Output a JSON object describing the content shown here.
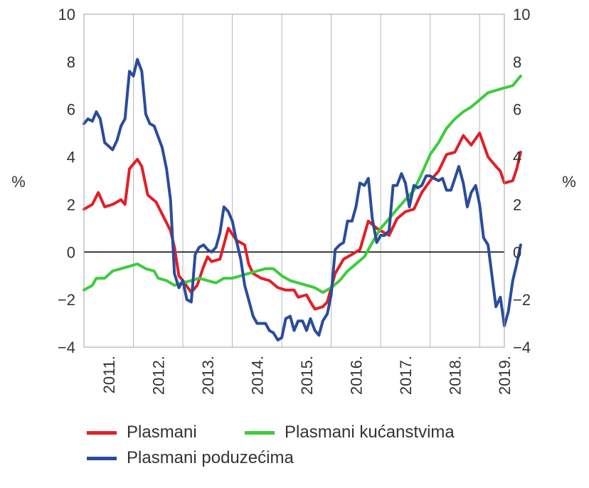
{
  "chart_data": {
    "type": "line",
    "title": "",
    "xlabel": "",
    "ylabel": "%",
    "ylabel_right": "%",
    "ylim": [
      -4,
      10
    ],
    "yticks": [
      "10",
      "8",
      "6",
      "4",
      "2",
      "0",
      "−2",
      "−4"
    ],
    "x_start": 2011.0,
    "x_end": 2019.5,
    "year_labels": [
      "2011.",
      "2012.",
      "2013.",
      "2014.",
      "2015.",
      "2016.",
      "2017.",
      "2018.",
      "2019."
    ],
    "grid": true,
    "zero_line": true,
    "legend_position": "bottom",
    "series": [
      {
        "name": "Plasmani",
        "color": "#e31e26",
        "points": [
          [
            2011.0,
            1.8
          ],
          [
            2011.17,
            2.0
          ],
          [
            2011.29,
            2.5
          ],
          [
            2011.42,
            1.9
          ],
          [
            2011.58,
            2.0
          ],
          [
            2011.75,
            2.2
          ],
          [
            2011.83,
            2.0
          ],
          [
            2011.92,
            3.5
          ],
          [
            2012.08,
            3.9
          ],
          [
            2012.17,
            3.6
          ],
          [
            2012.29,
            2.4
          ],
          [
            2012.46,
            2.1
          ],
          [
            2012.58,
            1.6
          ],
          [
            2012.75,
            0.9
          ],
          [
            2012.83,
            0.2
          ],
          [
            2012.92,
            -1.0
          ],
          [
            2013.0,
            -1.2
          ],
          [
            2013.17,
            -1.7
          ],
          [
            2013.29,
            -1.4
          ],
          [
            2013.42,
            -0.6
          ],
          [
            2013.5,
            -0.2
          ],
          [
            2013.58,
            -0.4
          ],
          [
            2013.75,
            -0.3
          ],
          [
            2013.92,
            1.0
          ],
          [
            2014.08,
            0.5
          ],
          [
            2014.25,
            0.3
          ],
          [
            2014.33,
            -0.5
          ],
          [
            2014.42,
            -0.9
          ],
          [
            2014.58,
            -1.1
          ],
          [
            2014.75,
            -1.2
          ],
          [
            2014.92,
            -1.5
          ],
          [
            2015.08,
            -1.6
          ],
          [
            2015.25,
            -1.6
          ],
          [
            2015.33,
            -1.9
          ],
          [
            2015.5,
            -1.8
          ],
          [
            2015.58,
            -2.1
          ],
          [
            2015.67,
            -2.4
          ],
          [
            2015.83,
            -2.3
          ],
          [
            2015.92,
            -2.1
          ],
          [
            2016.08,
            -0.9
          ],
          [
            2016.25,
            -0.3
          ],
          [
            2016.42,
            -0.1
          ],
          [
            2016.58,
            0.1
          ],
          [
            2016.75,
            1.3
          ],
          [
            2016.92,
            1.0
          ],
          [
            2017.0,
            0.9
          ],
          [
            2017.17,
            0.7
          ],
          [
            2017.33,
            1.4
          ],
          [
            2017.5,
            1.7
          ],
          [
            2017.67,
            1.8
          ],
          [
            2017.83,
            2.5
          ],
          [
            2018.0,
            3.0
          ],
          [
            2018.17,
            3.4
          ],
          [
            2018.33,
            4.1
          ],
          [
            2018.5,
            4.2
          ],
          [
            2018.67,
            4.9
          ],
          [
            2018.83,
            4.5
          ],
          [
            2019.0,
            5.0
          ],
          [
            2019.17,
            4.0
          ],
          [
            2019.33,
            3.6
          ],
          [
            2019.42,
            3.4
          ],
          [
            2019.5,
            2.9
          ],
          [
            2019.67,
            3.0
          ],
          [
            2019.75,
            3.5
          ],
          [
            2019.83,
            4.2
          ]
        ]
      },
      {
        "name": "Plasmani kućanstvima",
        "color": "#3dcc3d",
        "points": [
          [
            2011.0,
            -1.6
          ],
          [
            2011.17,
            -1.4
          ],
          [
            2011.25,
            -1.1
          ],
          [
            2011.42,
            -1.1
          ],
          [
            2011.58,
            -0.8
          ],
          [
            2011.75,
            -0.7
          ],
          [
            2011.92,
            -0.6
          ],
          [
            2012.08,
            -0.5
          ],
          [
            2012.25,
            -0.7
          ],
          [
            2012.42,
            -0.8
          ],
          [
            2012.5,
            -1.1
          ],
          [
            2012.67,
            -1.2
          ],
          [
            2012.83,
            -1.4
          ],
          [
            2013.0,
            -1.3
          ],
          [
            2013.17,
            -1.2
          ],
          [
            2013.33,
            -1.1
          ],
          [
            2013.5,
            -1.2
          ],
          [
            2013.67,
            -1.3
          ],
          [
            2013.83,
            -1.1
          ],
          [
            2014.0,
            -1.1
          ],
          [
            2014.17,
            -1.0
          ],
          [
            2014.33,
            -0.9
          ],
          [
            2014.5,
            -0.8
          ],
          [
            2014.67,
            -0.7
          ],
          [
            2014.83,
            -0.7
          ],
          [
            2015.0,
            -1.0
          ],
          [
            2015.17,
            -1.2
          ],
          [
            2015.33,
            -1.3
          ],
          [
            2015.5,
            -1.4
          ],
          [
            2015.67,
            -1.5
          ],
          [
            2015.83,
            -1.7
          ],
          [
            2016.0,
            -1.5
          ],
          [
            2016.17,
            -1.2
          ],
          [
            2016.33,
            -0.8
          ],
          [
            2016.5,
            -0.5
          ],
          [
            2016.67,
            -0.2
          ],
          [
            2016.83,
            0.4
          ],
          [
            2017.0,
            1.0
          ],
          [
            2017.17,
            1.4
          ],
          [
            2017.33,
            1.8
          ],
          [
            2017.5,
            2.2
          ],
          [
            2017.67,
            2.6
          ],
          [
            2017.83,
            3.3
          ],
          [
            2018.0,
            4.1
          ],
          [
            2018.17,
            4.6
          ],
          [
            2018.33,
            5.2
          ],
          [
            2018.5,
            5.6
          ],
          [
            2018.67,
            5.9
          ],
          [
            2018.83,
            6.1
          ],
          [
            2019.0,
            6.4
          ],
          [
            2019.17,
            6.7
          ],
          [
            2019.33,
            6.8
          ],
          [
            2019.5,
            6.9
          ],
          [
            2019.67,
            7.0
          ],
          [
            2019.83,
            7.4
          ]
        ]
      },
      {
        "name": "Plasmani poduzećima",
        "color": "#2b4c9b",
        "points": [
          [
            2011.0,
            5.4
          ],
          [
            2011.08,
            5.6
          ],
          [
            2011.17,
            5.5
          ],
          [
            2011.25,
            5.9
          ],
          [
            2011.33,
            5.6
          ],
          [
            2011.42,
            4.6
          ],
          [
            2011.58,
            4.3
          ],
          [
            2011.67,
            4.7
          ],
          [
            2011.75,
            5.3
          ],
          [
            2011.83,
            5.6
          ],
          [
            2011.92,
            7.6
          ],
          [
            2012.0,
            7.4
          ],
          [
            2012.08,
            8.1
          ],
          [
            2012.17,
            7.6
          ],
          [
            2012.25,
            5.8
          ],
          [
            2012.33,
            5.4
          ],
          [
            2012.42,
            5.3
          ],
          [
            2012.58,
            4.4
          ],
          [
            2012.67,
            3.5
          ],
          [
            2012.75,
            2.2
          ],
          [
            2012.83,
            -0.9
          ],
          [
            2012.92,
            -1.5
          ],
          [
            2013.0,
            -1.2
          ],
          [
            2013.08,
            -2.0
          ],
          [
            2013.17,
            -2.1
          ],
          [
            2013.25,
            -0.1
          ],
          [
            2013.33,
            0.2
          ],
          [
            2013.42,
            0.3
          ],
          [
            2013.5,
            0.1
          ],
          [
            2013.58,
            0.0
          ],
          [
            2013.67,
            0.2
          ],
          [
            2013.75,
            0.8
          ],
          [
            2013.83,
            1.9
          ],
          [
            2013.92,
            1.7
          ],
          [
            2014.0,
            1.3
          ],
          [
            2014.08,
            0.5
          ],
          [
            2014.17,
            -0.3
          ],
          [
            2014.25,
            -1.4
          ],
          [
            2014.33,
            -2.0
          ],
          [
            2014.42,
            -2.7
          ],
          [
            2014.5,
            -3.0
          ],
          [
            2014.67,
            -3.0
          ],
          [
            2014.75,
            -3.3
          ],
          [
            2014.83,
            -3.4
          ],
          [
            2014.92,
            -3.7
          ],
          [
            2015.0,
            -3.6
          ],
          [
            2015.08,
            -2.8
          ],
          [
            2015.17,
            -2.7
          ],
          [
            2015.25,
            -3.3
          ],
          [
            2015.33,
            -2.9
          ],
          [
            2015.42,
            -2.9
          ],
          [
            2015.5,
            -3.3
          ],
          [
            2015.58,
            -2.8
          ],
          [
            2015.67,
            -3.3
          ],
          [
            2015.75,
            -3.5
          ],
          [
            2015.83,
            -2.9
          ],
          [
            2015.92,
            -2.6
          ],
          [
            2016.0,
            -1.8
          ],
          [
            2016.08,
            0.1
          ],
          [
            2016.17,
            0.3
          ],
          [
            2016.25,
            0.4
          ],
          [
            2016.33,
            1.3
          ],
          [
            2016.42,
            1.3
          ],
          [
            2016.5,
            1.9
          ],
          [
            2016.58,
            2.9
          ],
          [
            2016.67,
            2.8
          ],
          [
            2016.75,
            3.1
          ],
          [
            2016.83,
            1.4
          ],
          [
            2016.92,
            0.4
          ],
          [
            2017.0,
            0.7
          ],
          [
            2017.08,
            0.7
          ],
          [
            2017.17,
            0.9
          ],
          [
            2017.25,
            2.8
          ],
          [
            2017.33,
            2.8
          ],
          [
            2017.42,
            3.3
          ],
          [
            2017.5,
            2.9
          ],
          [
            2017.58,
            1.9
          ],
          [
            2017.67,
            2.8
          ],
          [
            2017.75,
            2.7
          ],
          [
            2017.83,
            2.8
          ],
          [
            2017.92,
            3.2
          ],
          [
            2018.0,
            3.2
          ],
          [
            2018.08,
            3.1
          ],
          [
            2018.17,
            3.0
          ],
          [
            2018.25,
            3.1
          ],
          [
            2018.33,
            2.6
          ],
          [
            2018.42,
            2.6
          ],
          [
            2018.5,
            3.1
          ],
          [
            2018.58,
            3.6
          ],
          [
            2018.67,
            2.9
          ],
          [
            2018.75,
            1.9
          ],
          [
            2018.83,
            2.5
          ],
          [
            2018.92,
            2.8
          ],
          [
            2019.0,
            2.0
          ],
          [
            2019.08,
            0.6
          ],
          [
            2019.17,
            0.3
          ],
          [
            2019.25,
            -1.0
          ],
          [
            2019.33,
            -2.3
          ],
          [
            2019.42,
            -1.9
          ],
          [
            2019.5,
            -3.1
          ],
          [
            2019.58,
            -2.5
          ],
          [
            2019.67,
            -1.2
          ],
          [
            2019.75,
            -0.5
          ],
          [
            2019.83,
            0.3
          ]
        ]
      }
    ]
  }
}
